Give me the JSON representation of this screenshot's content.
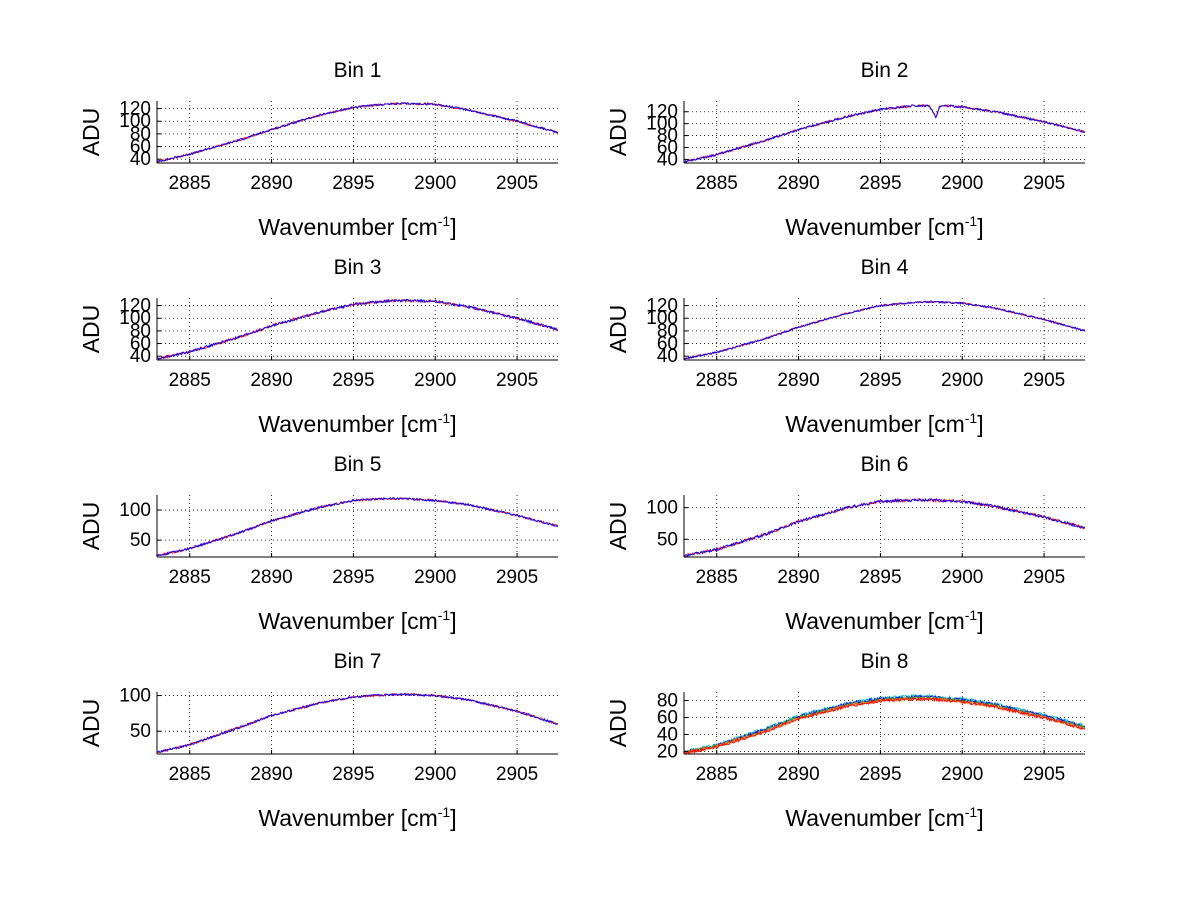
{
  "chart_data": {
    "type": "line",
    "grid": true,
    "panels": [
      {
        "title": "Bin 1",
        "xlabel": "Wavenumber [cm",
        "xlabel_sup": "-1",
        "xlabel_end": "]",
        "ylabel": "ADU",
        "xlim": [
          2883,
          2907.5
        ],
        "ylim": [
          34,
          132
        ],
        "xticks": [
          "2885",
          "2890",
          "2895",
          "2900",
          "2905"
        ],
        "yticks": [
          "40",
          "60",
          "80",
          "100",
          "120"
        ],
        "series": [
          {
            "name": "trace-red",
            "color": "#ff0000",
            "x": [
              2883,
              2885,
              2888,
              2890,
              2893,
              2895,
              2897,
              2898,
              2900,
              2902,
              2905,
              2907.5
            ],
            "y": [
              36,
              48,
              70,
              87,
              110,
              122,
              127,
              128,
              127,
              118,
              100,
              82
            ],
            "noise": 1.6
          },
          {
            "name": "trace-blue",
            "color": "#0000ff",
            "x": [
              2883,
              2885,
              2888,
              2890,
              2893,
              2895,
              2897,
              2898,
              2900,
              2902,
              2905,
              2907.5
            ],
            "y": [
              36,
              48,
              70,
              87,
              110,
              122,
              127,
              128,
              127,
              118,
              100,
              82
            ],
            "noise": 1.6
          }
        ]
      },
      {
        "title": "Bin 2",
        "xlabel": "Wavenumber [cm",
        "xlabel_sup": "-1",
        "xlabel_end": "]",
        "ylabel": "ADU",
        "xlim": [
          2883,
          2907.5
        ],
        "ylim": [
          34,
          138
        ],
        "xticks": [
          "2885",
          "2890",
          "2895",
          "2900",
          "2905"
        ],
        "yticks": [
          "40",
          "60",
          "80",
          "100",
          "120"
        ],
        "series": [
          {
            "name": "trace-red",
            "color": "#ff0000",
            "x": [
              2883,
              2885,
              2888,
              2890,
              2893,
              2895,
              2897,
              2898,
              2898.4,
              2898.6,
              2899,
              2900,
              2902,
              2905,
              2907.5
            ],
            "y": [
              36,
              48,
              72,
              90,
              112,
              124,
              130,
              130,
              110,
              128,
              130,
              128,
              120,
              103,
              86
            ],
            "noise": 1.8
          },
          {
            "name": "trace-blue",
            "color": "#0000ff",
            "x": [
              2883,
              2885,
              2888,
              2890,
              2893,
              2895,
              2897,
              2898,
              2898.4,
              2898.6,
              2899,
              2900,
              2902,
              2905,
              2907.5
            ],
            "y": [
              36,
              48,
              72,
              90,
              112,
              124,
              130,
              130,
              110,
              128,
              130,
              128,
              120,
              103,
              86
            ],
            "noise": 1.8
          }
        ]
      },
      {
        "title": "Bin 3",
        "xlabel": "Wavenumber [cm",
        "xlabel_sup": "-1",
        "xlabel_end": "]",
        "ylabel": "ADU",
        "xlim": [
          2883,
          2907.5
        ],
        "ylim": [
          34,
          132
        ],
        "xticks": [
          "2885",
          "2890",
          "2895",
          "2900",
          "2905"
        ],
        "yticks": [
          "40",
          "60",
          "80",
          "100",
          "120"
        ],
        "series": [
          {
            "name": "trace-red",
            "color": "#ff0000",
            "x": [
              2883,
              2885,
              2888,
              2890,
              2893,
              2895,
              2897,
              2898,
              2900,
              2902,
              2905,
              2907.5
            ],
            "y": [
              36,
              47,
              70,
              88,
              110,
              122,
              127,
              128,
              127,
              118,
              100,
              82
            ],
            "noise": 2.0
          },
          {
            "name": "trace-blue",
            "color": "#0000ff",
            "x": [
              2883,
              2885,
              2888,
              2890,
              2893,
              2895,
              2897,
              2898,
              2900,
              2902,
              2905,
              2907.5
            ],
            "y": [
              36,
              47,
              70,
              88,
              110,
              122,
              127,
              128,
              127,
              118,
              100,
              82
            ],
            "noise": 2.0
          }
        ]
      },
      {
        "title": "Bin 4",
        "xlabel": "Wavenumber [cm",
        "xlabel_sup": "-1",
        "xlabel_end": "]",
        "ylabel": "ADU",
        "xlim": [
          2883,
          2907.5
        ],
        "ylim": [
          34,
          132
        ],
        "xticks": [
          "2885",
          "2890",
          "2895",
          "2900",
          "2905"
        ],
        "yticks": [
          "40",
          "60",
          "80",
          "100",
          "120"
        ],
        "series": [
          {
            "name": "trace-red",
            "color": "#ff0000",
            "x": [
              2883,
              2885,
              2888,
              2890,
              2893,
              2895,
              2897,
              2898,
              2900,
              2902,
              2905,
              2907.5
            ],
            "y": [
              36,
              46,
              68,
              86,
              108,
              120,
              125,
              126,
              124,
              116,
              98,
              80
            ],
            "noise": 1.4
          },
          {
            "name": "trace-blue",
            "color": "#0000ff",
            "x": [
              2883,
              2885,
              2888,
              2890,
              2893,
              2895,
              2897,
              2898,
              2900,
              2902,
              2905,
              2907.5
            ],
            "y": [
              36,
              46,
              68,
              86,
              108,
              120,
              125,
              126,
              124,
              116,
              98,
              80
            ],
            "noise": 1.4
          }
        ]
      },
      {
        "title": "Bin 5",
        "xlabel": "Wavenumber [cm",
        "xlabel_sup": "-1",
        "xlabel_end": "]",
        "ylabel": "ADU",
        "xlim": [
          2883,
          2907.5
        ],
        "ylim": [
          22,
          125
        ],
        "xticks": [
          "2885",
          "2890",
          "2895",
          "2900",
          "2905"
        ],
        "yticks": [
          "50",
          "100"
        ],
        "series": [
          {
            "name": "trace-red",
            "color": "#ff0000",
            "x": [
              2883,
              2885,
              2888,
              2890,
              2893,
              2895,
              2897,
              2898,
              2900,
              2902,
              2905,
              2907.5
            ],
            "y": [
              24,
              36,
              62,
              82,
              105,
              116,
              119,
              119,
              116,
              109,
              91,
              73
            ],
            "noise": 1.8
          },
          {
            "name": "trace-blue",
            "color": "#0000ff",
            "x": [
              2883,
              2885,
              2888,
              2890,
              2893,
              2895,
              2897,
              2898,
              2900,
              2902,
              2905,
              2907.5
            ],
            "y": [
              24,
              36,
              62,
              82,
              105,
              116,
              119,
              119,
              116,
              109,
              91,
              73
            ],
            "noise": 1.8
          }
        ]
      },
      {
        "title": "Bin 6",
        "xlabel": "Wavenumber [cm",
        "xlabel_sup": "-1",
        "xlabel_end": "]",
        "ylabel": "ADU",
        "xlim": [
          2883,
          2907.5
        ],
        "ylim": [
          22,
          120
        ],
        "xticks": [
          "2885",
          "2890",
          "2895",
          "2900",
          "2905"
        ],
        "yticks": [
          "50",
          "100"
        ],
        "series": [
          {
            "name": "trace-red",
            "color": "#ff0000",
            "x": [
              2883,
              2885,
              2888,
              2890,
              2893,
              2895,
              2897,
              2898,
              2900,
              2902,
              2905,
              2907.5
            ],
            "y": [
              24,
              34,
              58,
              78,
              100,
              110,
              112,
              112,
              110,
              102,
              85,
              68
            ],
            "noise": 2.2
          },
          {
            "name": "trace-blue",
            "color": "#0000ff",
            "x": [
              2883,
              2885,
              2888,
              2890,
              2893,
              2895,
              2897,
              2898,
              2900,
              2902,
              2905,
              2907.5
            ],
            "y": [
              24,
              34,
              58,
              78,
              100,
              110,
              112,
              112,
              110,
              102,
              85,
              68
            ],
            "noise": 2.2
          }
        ]
      },
      {
        "title": "Bin 7",
        "xlabel": "Wavenumber [cm",
        "xlabel_sup": "-1",
        "xlabel_end": "]",
        "ylabel": "ADU",
        "xlim": [
          2883,
          2907.5
        ],
        "ylim": [
          18,
          105
        ],
        "xticks": [
          "2885",
          "2890",
          "2895",
          "2900",
          "2905"
        ],
        "yticks": [
          "50",
          "100"
        ],
        "series": [
          {
            "name": "trace-red",
            "color": "#ff0000",
            "x": [
              2883,
              2885,
              2888,
              2890,
              2893,
              2895,
              2897,
              2898,
              2900,
              2902,
              2905,
              2907.5
            ],
            "y": [
              20,
              31,
              55,
              72,
              90,
              98,
              101,
              102,
              100,
              94,
              78,
              60
            ],
            "noise": 1.5
          },
          {
            "name": "trace-blue",
            "color": "#0000ff",
            "x": [
              2883,
              2885,
              2888,
              2890,
              2893,
              2895,
              2897,
              2898,
              2900,
              2902,
              2905,
              2907.5
            ],
            "y": [
              20,
              31,
              55,
              72,
              90,
              98,
              101,
              102,
              100,
              94,
              78,
              60
            ],
            "noise": 1.5
          }
        ]
      },
      {
        "title": "Bin 8",
        "xlabel": "Wavenumber [cm",
        "xlabel_sup": "-1",
        "xlabel_end": "]",
        "ylabel": "ADU",
        "xlim": [
          2883,
          2907.5
        ],
        "ylim": [
          17,
          90
        ],
        "xticks": [
          "2885",
          "2890",
          "2895",
          "2900",
          "2905"
        ],
        "yticks": [
          "20",
          "40",
          "60",
          "80"
        ],
        "series": [
          {
            "name": "trace-cyan",
            "color": "#00bfbf",
            "x": [
              2883,
              2885,
              2888,
              2890,
              2893,
              2895,
              2897,
              2898,
              2900,
              2902,
              2905,
              2907.5
            ],
            "y": [
              20,
              28,
              47,
              62,
              77,
              83,
              85,
              85,
              82,
              76,
              63,
              50
            ],
            "noise": 1.8
          },
          {
            "name": "trace-blue",
            "color": "#0000ff",
            "x": [
              2883,
              2885,
              2888,
              2890,
              2893,
              2895,
              2897,
              2898,
              2900,
              2902,
              2905,
              2907.5
            ],
            "y": [
              19.5,
              27,
              46,
              61,
              76,
              82,
              84,
              84,
              81,
              75,
              62,
              49
            ],
            "noise": 1.8
          },
          {
            "name": "trace-green",
            "color": "#2ca02c",
            "x": [
              2883,
              2885,
              2888,
              2890,
              2893,
              2895,
              2897,
              2898,
              2900,
              2902,
              2905,
              2907.5
            ],
            "y": [
              19,
              26.5,
              45,
              60,
              75,
              81,
              83,
              83,
              80,
              74,
              61,
              48
            ],
            "noise": 1.8
          },
          {
            "name": "trace-orange",
            "color": "#ff8000",
            "x": [
              2883,
              2885,
              2888,
              2890,
              2893,
              2895,
              2897,
              2898,
              2900,
              2902,
              2905,
              2907.5
            ],
            "y": [
              18.5,
              26,
              44,
              59,
              74,
              80,
              82,
              82,
              79,
              73,
              60,
              47
            ],
            "noise": 1.8
          },
          {
            "name": "trace-red",
            "color": "#ff0000",
            "x": [
              2883,
              2885,
              2888,
              2890,
              2893,
              2895,
              2897,
              2898,
              2900,
              2902,
              2905,
              2907.5
            ],
            "y": [
              18,
              25.5,
              43.5,
              58.5,
              73.5,
              79.5,
              81.5,
              81.5,
              78.5,
              72.5,
              59.5,
              46.5
            ],
            "noise": 1.8
          }
        ]
      }
    ]
  }
}
